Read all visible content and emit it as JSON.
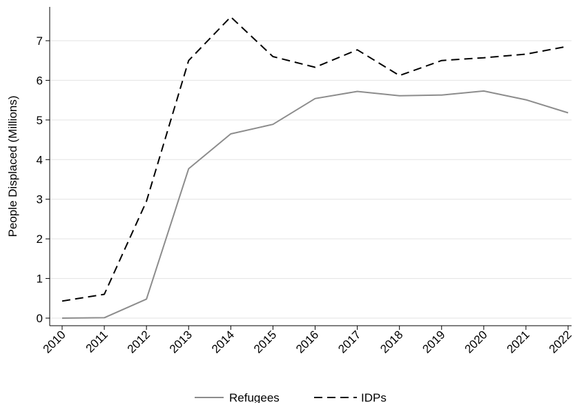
{
  "chart_data": {
    "type": "line",
    "title": "",
    "xlabel": "",
    "ylabel": "People Displaced (Millions)",
    "x": [
      "2010",
      "2011",
      "2012",
      "2013",
      "2014",
      "2015",
      "2016",
      "2017",
      "2018",
      "2019",
      "2020",
      "2021",
      "2022"
    ],
    "yticks": [
      "0",
      "1",
      "2",
      "3",
      "4",
      "5",
      "6",
      "7"
    ],
    "ylim": [
      -0.2,
      7.85
    ],
    "grid": true,
    "legend_position": "bottom",
    "series": [
      {
        "name": "Refugees",
        "color": "#8c8c8c",
        "style": "solid",
        "values": [
          0.0,
          0.01,
          0.48,
          3.77,
          4.65,
          4.89,
          5.54,
          5.72,
          5.61,
          5.63,
          5.73,
          5.51,
          5.18
        ]
      },
      {
        "name": "IDPs",
        "color": "#000000",
        "style": "dashed",
        "values": [
          0.43,
          0.6,
          2.95,
          6.5,
          7.6,
          6.6,
          6.33,
          6.77,
          6.12,
          6.5,
          6.57,
          6.66,
          6.86
        ]
      }
    ]
  }
}
